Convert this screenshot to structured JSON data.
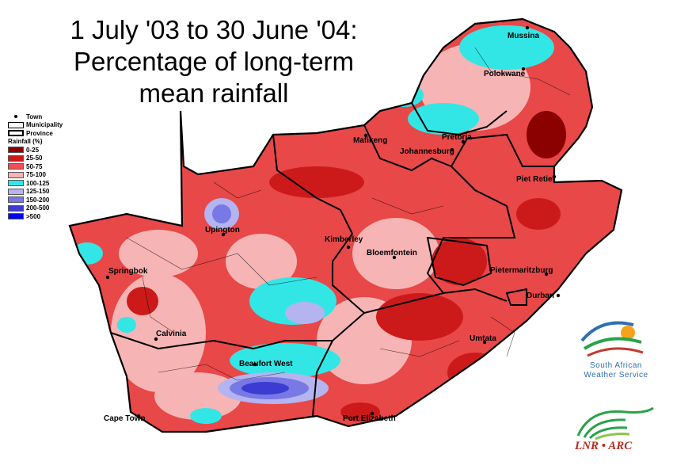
{
  "title": {
    "line1": "1 July '03 to 30 June '04:",
    "line2": "Percentage of long-term",
    "line3": "mean rainfall"
  },
  "legend": {
    "town": "Town",
    "municipality": "Municipality",
    "province": "Province",
    "rainfall_header": "Rainfall (%)",
    "classes": [
      {
        "label": "0-25",
        "color": "#8b0000"
      },
      {
        "label": "25-50",
        "color": "#cc1a1a"
      },
      {
        "label": "50-75",
        "color": "#f0505a"
      },
      {
        "label": "75-100",
        "color": "#f7b4b4"
      },
      {
        "label": "100-125",
        "color": "#33e6e6"
      },
      {
        "label": "125-150",
        "color": "#b4b4f0"
      },
      {
        "label": "150-200",
        "color": "#7878e6"
      },
      {
        "label": "200-500",
        "color": "#3c3cd2"
      },
      {
        "label": ">500",
        "color": "#0000e6"
      }
    ]
  },
  "towns": {
    "musina": "Mussina",
    "polokwane": "Polokwane",
    "mafikeng": "Mafikeng",
    "pretoria": "Pretoria",
    "johannesburg": "Johannesburg",
    "piet_retief": "Piet Retief",
    "upington": "Upington",
    "kimberley": "Kimberley",
    "bloemfontein": "Bloemfontein",
    "springbok": "Springbok",
    "pietermaritzburg": "Pietermaritzburg",
    "durban": "Durban",
    "calvinia": "Calvinia",
    "umtata": "Umtata",
    "beaufort_west": "Beaufort West",
    "cape_town": "Cape Town",
    "port_elizabeth": "Port Elizabeth"
  },
  "logos": {
    "saws_line1": "South African",
    "saws_line2": "Weather Service",
    "arc": "LNR • ARC"
  }
}
